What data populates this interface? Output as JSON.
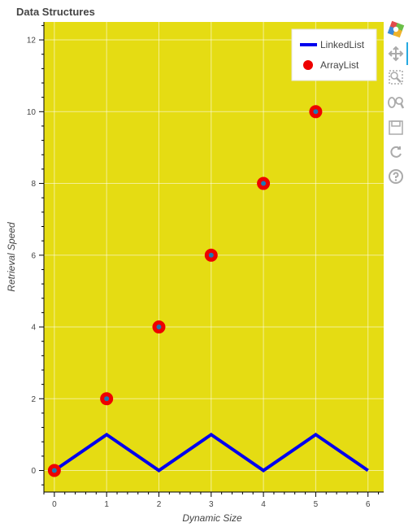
{
  "chart_data": {
    "type": "line",
    "title": "Data Structures",
    "xlabel": "Dynamic Size",
    "ylabel": "Retrieval Speed",
    "xlim": [
      -0.2,
      6.3
    ],
    "ylim": [
      -0.6,
      12.5
    ],
    "x_ticks": [
      0,
      1,
      2,
      3,
      4,
      5,
      6
    ],
    "y_ticks": [
      0,
      2,
      4,
      6,
      8,
      10,
      12
    ],
    "grid": true,
    "legend_position": "top-right",
    "background": "#e5dc13",
    "series": [
      {
        "name": "LinkedList",
        "kind": "line",
        "color": "#0000ee",
        "x": [
          0,
          1,
          2,
          3,
          4,
          5,
          6
        ],
        "y": [
          0,
          1,
          0,
          1,
          0,
          1,
          0
        ]
      },
      {
        "name": "ArrayList",
        "kind": "scatter",
        "color": "#ee0000",
        "center_color": "#1f77b4",
        "x": [
          0,
          1,
          2,
          3,
          4,
          5
        ],
        "y": [
          0,
          2,
          4,
          6,
          8,
          10
        ]
      }
    ]
  },
  "toolbar": {
    "items": [
      {
        "icon": "bokeh-logo-icon"
      },
      {
        "icon": "pan-icon"
      },
      {
        "icon": "box-zoom-icon"
      },
      {
        "icon": "wheel-zoom-icon"
      },
      {
        "icon": "save-icon"
      },
      {
        "icon": "reset-icon"
      },
      {
        "icon": "help-icon"
      }
    ]
  }
}
